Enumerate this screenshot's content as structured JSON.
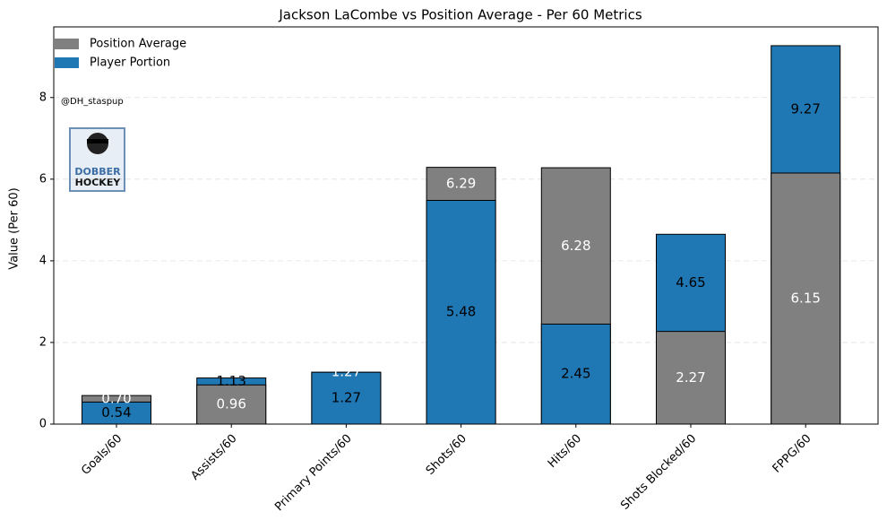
{
  "chart_data": {
    "type": "bar",
    "title": "Jackson LaCombe vs Position Average - Per 60 Metrics",
    "ylabel": "Value (Per 60)",
    "categories": [
      "Goals/60",
      "Assists/60",
      "Primary Points/60",
      "Shots/60",
      "Hits/60",
      "Shots Blocked/60",
      "FPPG/60"
    ],
    "series": [
      {
        "name": "Position Average",
        "color": "#808080",
        "label_color": "#ffffff",
        "values": [
          0.7,
          0.96,
          1.27,
          6.29,
          6.28,
          2.27,
          6.15
        ],
        "value_labels": [
          "0.70",
          "0.96",
          "1.27",
          "6.29",
          "6.28",
          "2.27",
          "6.15"
        ]
      },
      {
        "name": "Player Portion",
        "color": "#1f77b4",
        "label_color": "#000000",
        "values": [
          0.54,
          1.13,
          1.27,
          5.48,
          2.45,
          4.65,
          9.27
        ],
        "value_labels": [
          "0.54",
          "1.13",
          "1.27",
          "5.48",
          "2.45",
          "4.65",
          "9.27"
        ]
      }
    ],
    "ylim": [
      0,
      9.73
    ],
    "yticks": [
      0,
      2,
      4,
      6,
      8
    ],
    "grid": true,
    "legend": "upper left",
    "watermark": "@DH_staspup",
    "logo": [
      "DOBBER",
      "HOCKEY"
    ]
  }
}
